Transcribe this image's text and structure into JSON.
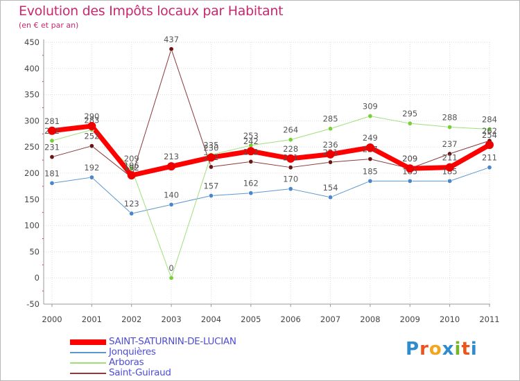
{
  "title": "Evolution des Impôts locaux par Habitant",
  "subtitle": "(en € et par an)",
  "logo": {
    "text": "Proxiti",
    "letters": [
      "P",
      "r",
      "o",
      "x",
      "i",
      "t",
      "i"
    ],
    "colors": [
      "#2e8bd0",
      "#e8561e",
      "#f2a51d",
      "#2e8bd0",
      "#7bb32e",
      "#e8561e",
      "#2e8bd0"
    ]
  },
  "chart_data": {
    "type": "line",
    "title": "Evolution des Impôts locaux par Habitant",
    "ylabel": "(en € et par an)",
    "xlabel": "",
    "ylim": [
      -50,
      450
    ],
    "yticks": [
      -50,
      0,
      50,
      100,
      150,
      200,
      250,
      300,
      350,
      400,
      450
    ],
    "x": [
      "2000",
      "2001",
      "2002",
      "2003",
      "2004",
      "2005",
      "2006",
      "2007",
      "2008",
      "2009",
      "2010",
      "2011"
    ],
    "series": [
      {
        "name": "Jonquières",
        "color": "#5b97d0",
        "dot": "#4a86c8",
        "width": 1,
        "values": [
          181,
          192,
          123,
          140,
          157,
          162,
          170,
          154,
          185,
          185,
          185,
          211
        ],
        "labels": [
          "181",
          "192",
          "123",
          "140",
          "157",
          "162",
          "170",
          "154",
          "185",
          "185",
          "185",
          "211"
        ]
      },
      {
        "name": "Arboras",
        "color": "#9fdf7a",
        "dot": "#78cf3a",
        "width": 1,
        "values": [
          262,
          283,
          209,
          0,
          235,
          253,
          264,
          285,
          309,
          295,
          288,
          284
        ],
        "labels": [
          "262",
          "283",
          "209",
          "0",
          "235",
          "253",
          "264",
          "285",
          "309",
          "295",
          "288",
          "284"
        ]
      },
      {
        "name": "Saint-Guiraud",
        "color": "#8a3a3a",
        "dot": "#6b1414",
        "width": 1,
        "values": [
          231,
          252,
          192,
          437,
          212,
          222,
          211,
          221,
          227,
          209,
          237,
          262
        ],
        "labels": [
          "231",
          "252",
          "192",
          "437",
          "212",
          "222",
          "211",
          "221",
          "227",
          "209",
          "237",
          "262"
        ]
      },
      {
        "name": "SAINT-SATURNIN-DE-LUCIAN",
        "color": "#ff0000",
        "dot": "#ee0000",
        "width": 7,
        "values": [
          281,
          290,
          196,
          213,
          230,
          242,
          228,
          236,
          249,
          209,
          211,
          254
        ],
        "labels": [
          "281",
          "290",
          "196",
          "213",
          "230",
          "242",
          "228",
          "236",
          "249",
          "209",
          "211",
          "254"
        ]
      }
    ],
    "legend_order": [
      "SAINT-SATURNIN-DE-LUCIAN",
      "Jonquières",
      "Arboras",
      "Saint-Guiraud"
    ],
    "grid": true
  }
}
